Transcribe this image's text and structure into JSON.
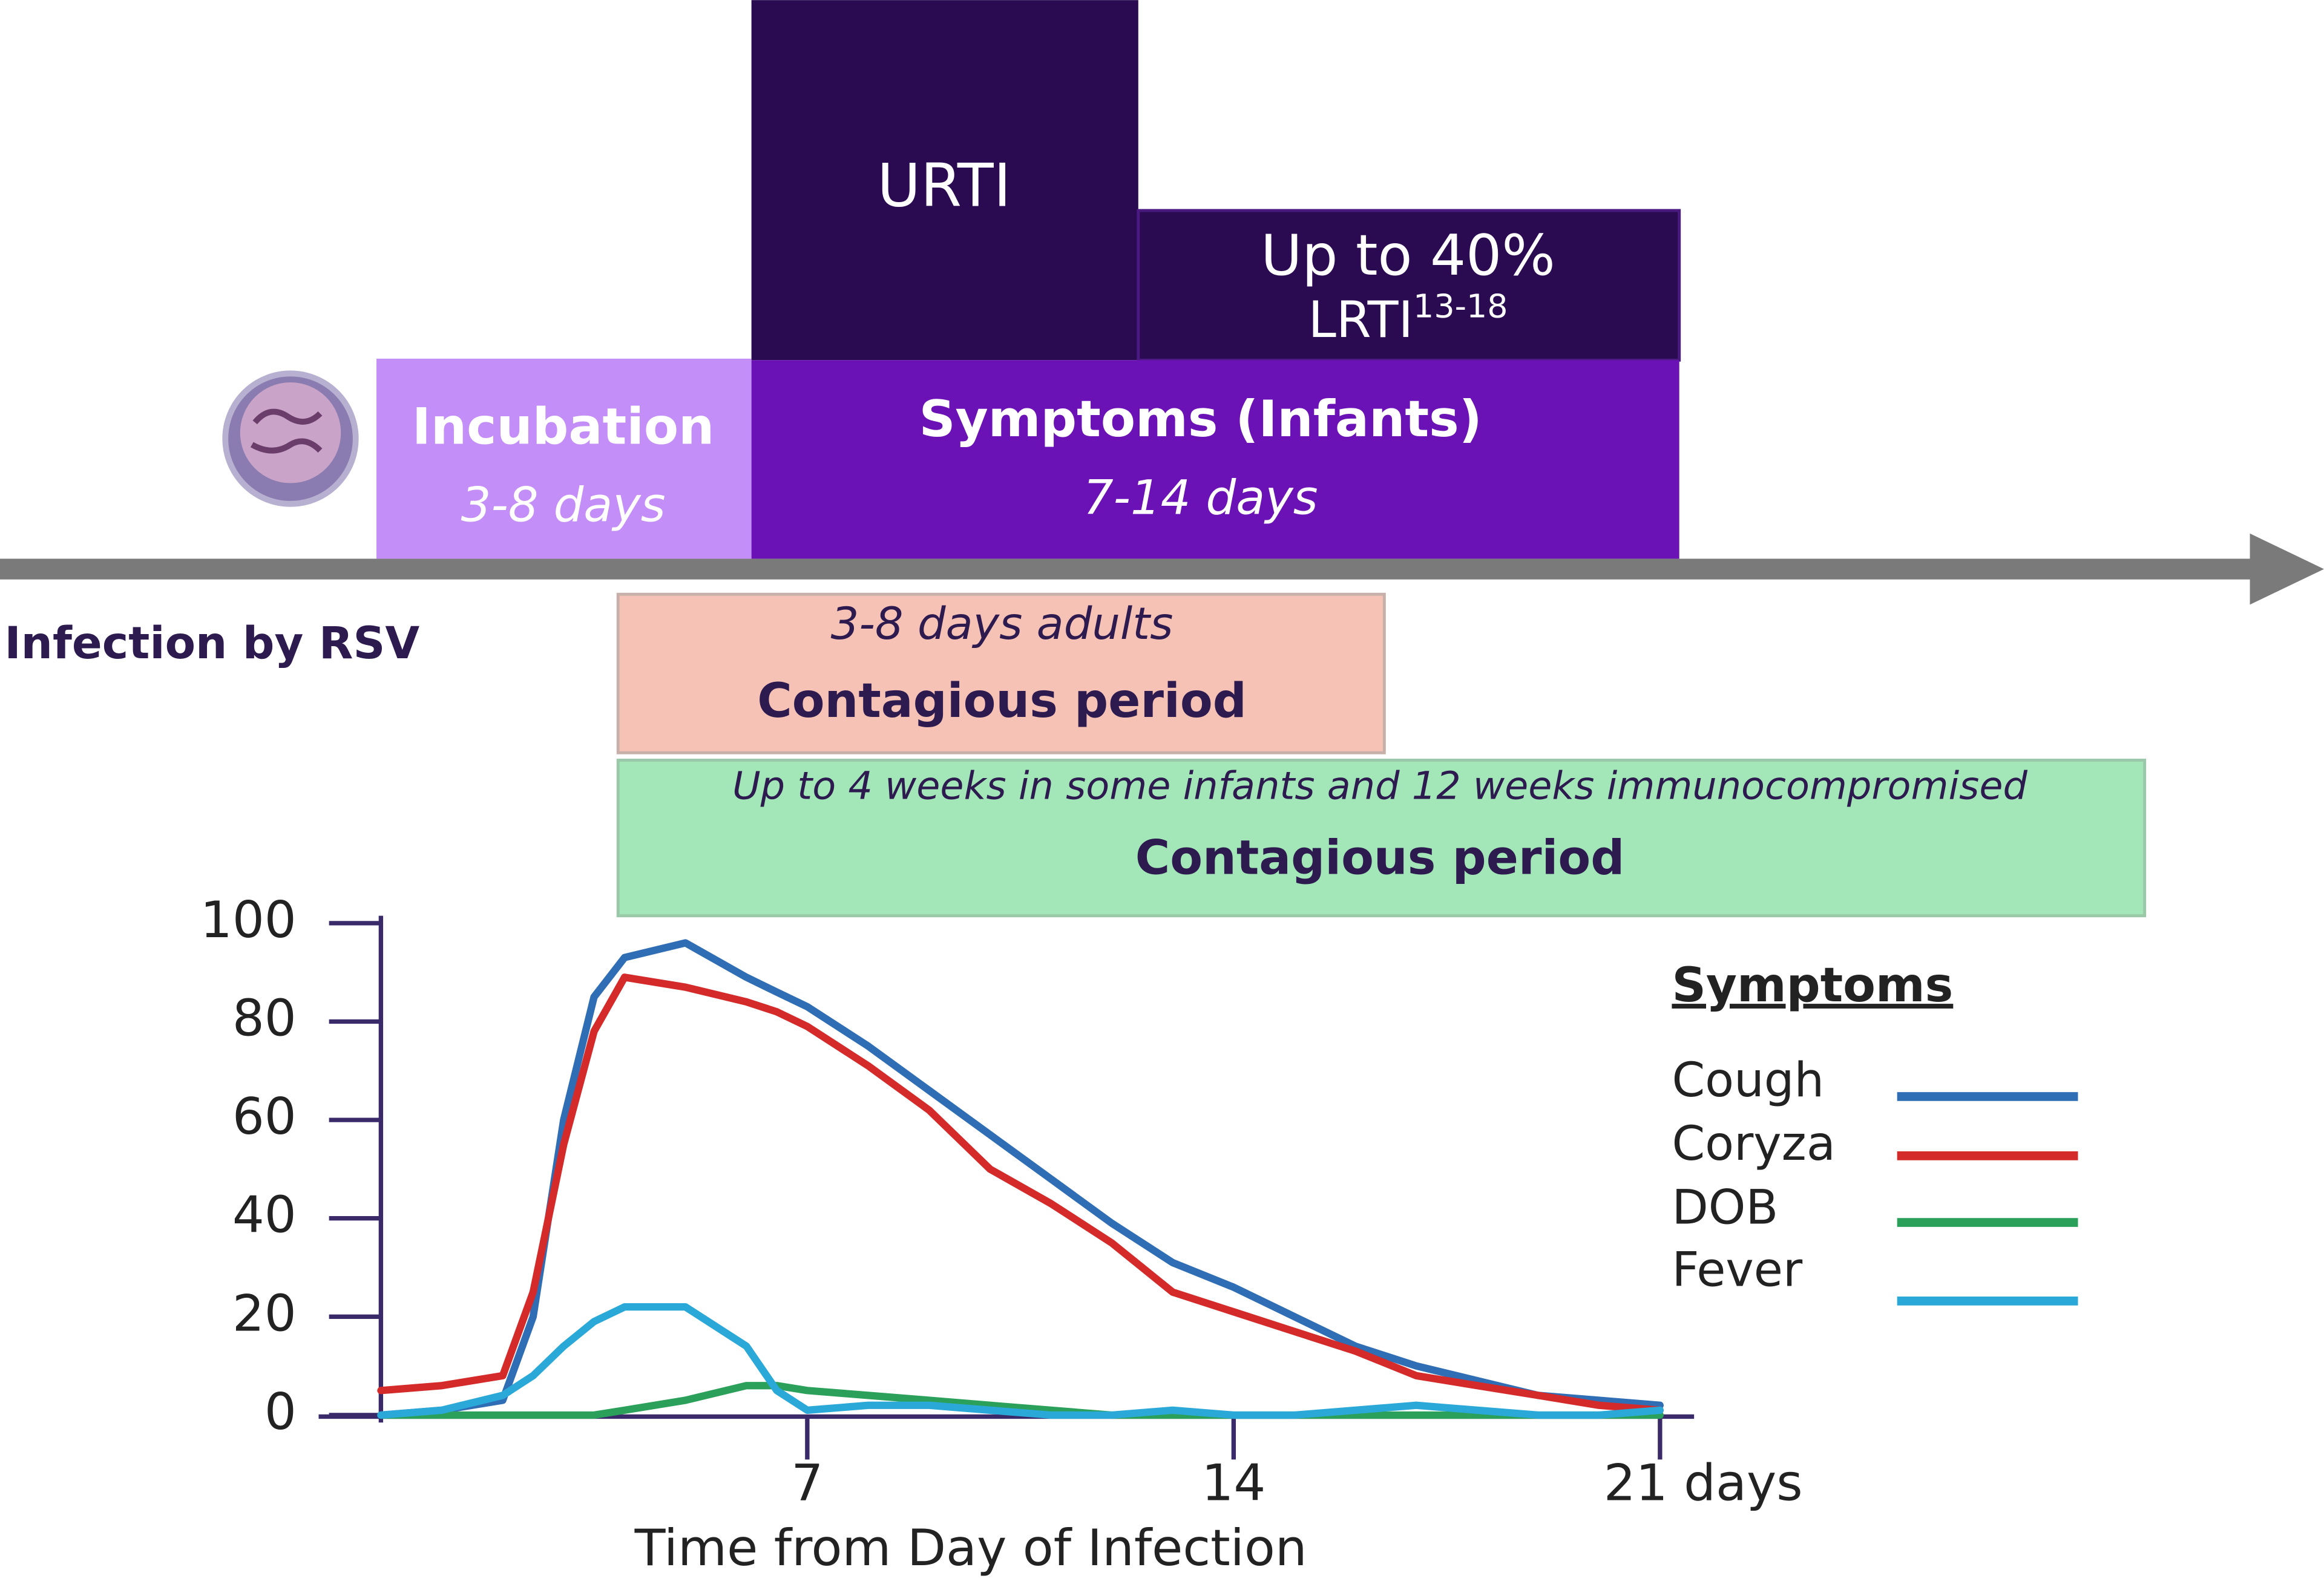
{
  "diagram": {
    "urti": "URTI",
    "lrti_share": "Up to 40%",
    "lrti": "LRTI",
    "lrti_refs": "13-18",
    "incubation": {
      "title": "Incubation",
      "duration": "3-8 days"
    },
    "symptoms": {
      "title": "Symptoms (Infants)",
      "duration": "7-14 days"
    },
    "infection": "Infection by RSV",
    "contagious_adults": {
      "note": "3-8 days adults",
      "title": "Contagious period"
    },
    "contagious_infants": {
      "note": "Up to 4 weeks in some infants and 12 weeks immunocompromised",
      "title": "Contagious period"
    }
  },
  "chart_data": {
    "type": "line",
    "xlabel": "Time from Day of Infection",
    "legend_title": "Symptoms",
    "x": [
      0,
      1,
      2,
      2.5,
      3,
      3.5,
      4,
      5,
      6,
      6.5,
      7,
      8,
      9,
      10,
      11,
      12,
      13,
      14,
      15,
      16,
      17,
      18,
      19,
      20,
      21
    ],
    "xlim": [
      0,
      21
    ],
    "xticks": [
      7,
      14,
      {
        "value": 21,
        "label": "21 days"
      }
    ],
    "ylim": [
      0,
      100
    ],
    "yticks": [
      0,
      20,
      40,
      60,
      80,
      100
    ],
    "series": [
      {
        "name": "Cough",
        "color": "#2f6db5",
        "values": [
          0,
          1,
          3,
          20,
          60,
          85,
          93,
          96,
          89,
          86,
          83,
          75,
          66,
          57,
          48,
          39,
          31,
          26,
          20,
          14,
          10,
          7,
          4,
          3,
          2
        ]
      },
      {
        "name": "Coryza",
        "color": "#d42a2a",
        "values": [
          5,
          6,
          8,
          25,
          55,
          78,
          89,
          87,
          84,
          82,
          79,
          71,
          62,
          50,
          43,
          35,
          25,
          21,
          17,
          13,
          8,
          6,
          4,
          2,
          1
        ]
      },
      {
        "name": "DOB",
        "color": "#2aa05a",
        "values": [
          0,
          0,
          0,
          0,
          0,
          0,
          1,
          3,
          6,
          6,
          5,
          4,
          3,
          2,
          1,
          0,
          0,
          0,
          0,
          0,
          0,
          0,
          0,
          0,
          0
        ]
      },
      {
        "name": "Fever",
        "color": "#2aa8d8",
        "values": [
          0,
          1,
          4,
          8,
          14,
          19,
          22,
          22,
          14,
          5,
          1,
          2,
          2,
          1,
          0,
          0,
          1,
          0,
          0,
          1,
          2,
          1,
          0,
          0,
          1
        ]
      }
    ]
  }
}
